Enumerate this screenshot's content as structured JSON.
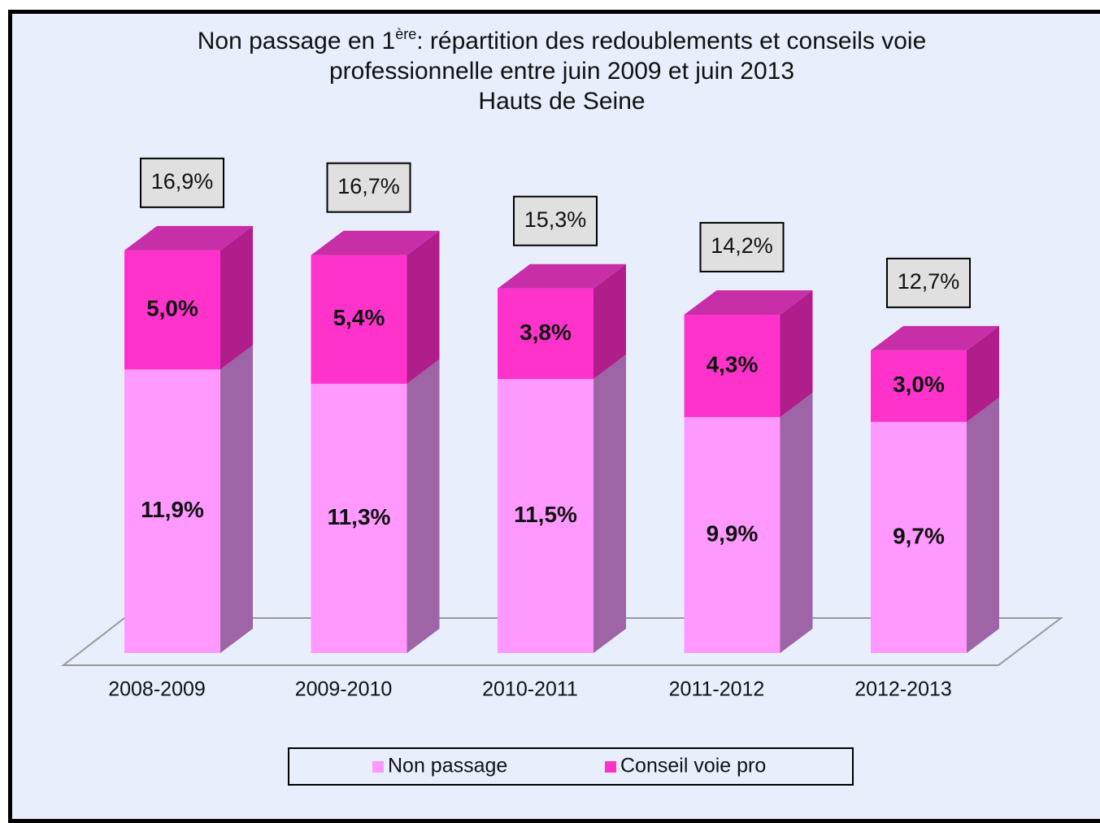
{
  "chart_data": {
    "type": "bar3d_stacked",
    "title": {
      "text": "Non passage en 1",
      "superscript": "ère",
      "text_after": ": répartition des redoublements et conseils voie professionnelle entre juin 2009 et juin 2013"
    },
    "subtitle": "Hauts de Seine",
    "categories": [
      "2008-2009",
      "2009-2010",
      "2010-2011",
      "2011-2012",
      "2012-2013"
    ],
    "series": [
      {
        "name": "Non passage",
        "color": "#ff99ff",
        "side_color": "#9e64a6",
        "top_color": "#e08ae0",
        "values": [
          11.9,
          11.3,
          11.5,
          9.9,
          9.7
        ],
        "value_labels": [
          "11,9%",
          "11,3%",
          "11,5%",
          "9,9%",
          "9,7%"
        ]
      },
      {
        "name": "Conseil voie pro",
        "color": "#ff33cc",
        "side_color": "#b01e8c",
        "top_color": "#c82ea8",
        "values": [
          5.0,
          5.4,
          3.8,
          4.3,
          3.0
        ],
        "value_labels": [
          "5,0%",
          "5,4%",
          "3,8%",
          "4,3%",
          "3,0%"
        ]
      }
    ],
    "totals": {
      "values": [
        16.9,
        16.7,
        15.3,
        14.2,
        12.7
      ],
      "value_labels": [
        "16,9%",
        "16,7%",
        "15,3%",
        "14,2%",
        "12,7%"
      ]
    },
    "legend": "bottom"
  }
}
